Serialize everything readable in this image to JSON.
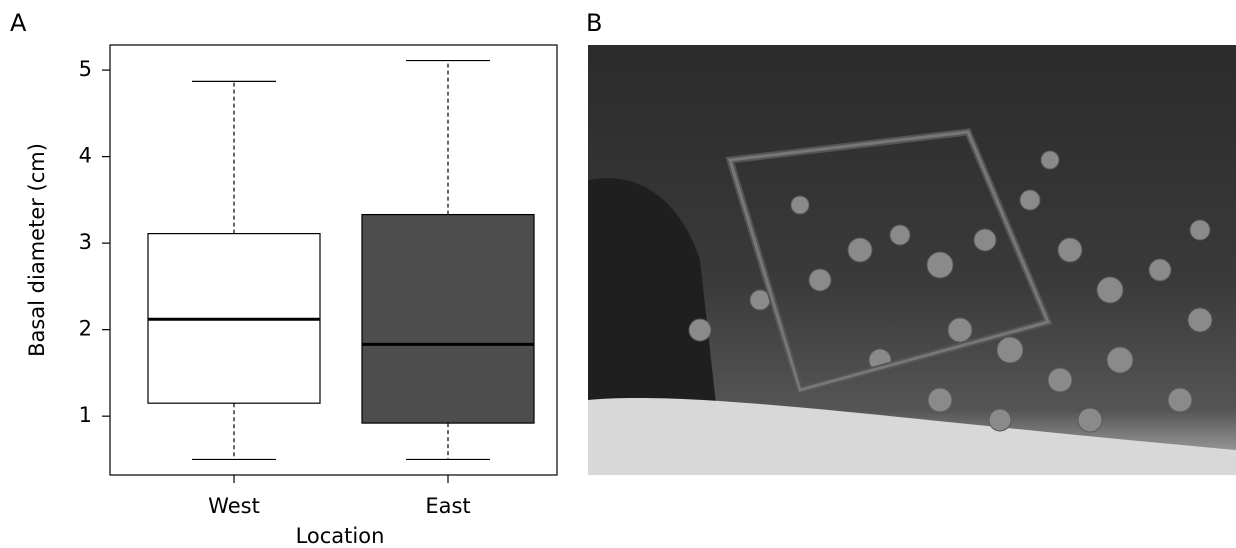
{
  "panel_labels": [
    "A",
    "B"
  ],
  "chart_data": {
    "type": "box",
    "xlabel": "Location",
    "ylabel": "Basal diameter (cm)",
    "categories": [
      "West",
      "East"
    ],
    "boxes": [
      {
        "min": 0.5,
        "q1": 1.15,
        "median": 2.12,
        "q3": 3.11,
        "max": 4.87,
        "color": "#ffffff"
      },
      {
        "min": 0.5,
        "q1": 0.92,
        "median": 1.83,
        "q3": 3.33,
        "max": 5.11,
        "color": "#4d4d4d"
      }
    ],
    "ylim": [
      0.32,
      5.29
    ],
    "yticks": [
      1,
      2,
      3,
      4,
      5
    ]
  }
}
